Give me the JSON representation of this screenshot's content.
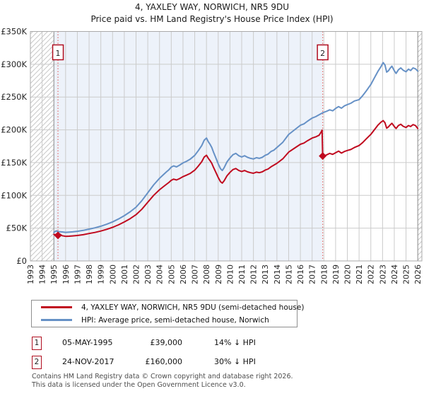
{
  "title": "4, YAXLEY WAY, NORWICH, NR5 9DU",
  "subtitle": "Price paid vs. HM Land Registry's House Price Index (HPI)",
  "colors": {
    "line_red": "#c00a1f",
    "line_blue": "#6691c6",
    "marker_red": "#b00d1f",
    "hpi_band_tint": "#edf2fa",
    "grid": "#cbcbcb",
    "grid_dark": "#8a8a8a",
    "dotted_sale_line": "#e06c6c",
    "hatch": "#c9c9c9",
    "plot_border": "#aaaaaa",
    "axis_text": "#262626"
  },
  "chart_data": {
    "type": "line",
    "title": "4, YAXLEY WAY, NORWICH, NR5 9DU",
    "subtitle": "Price paid vs. HM Land Registry's House Price Index (HPI)",
    "xlabel": "",
    "ylabel": "",
    "xlim": [
      1993,
      2026.35
    ],
    "ylim": [
      0,
      350
    ],
    "grid": true,
    "y_ticks": [
      0,
      50,
      100,
      150,
      200,
      250,
      300,
      350
    ],
    "y_tick_labels": [
      "£0",
      "£50K",
      "£100K",
      "£150K",
      "£200K",
      "£250K",
      "£300K",
      "£350K"
    ],
    "x_ticks": [
      1993,
      1994,
      1995,
      1996,
      1997,
      1998,
      1999,
      2000,
      2001,
      2002,
      2003,
      2004,
      2005,
      2006,
      2007,
      2008,
      2009,
      2010,
      2011,
      2012,
      2013,
      2014,
      2015,
      2016,
      2017,
      2018,
      2019,
      2020,
      2021,
      2022,
      2023,
      2024,
      2025,
      2026
    ],
    "dark_x_gridlines": [
      1995,
      2026
    ],
    "hpi_band_range": [
      1995,
      2017.9
    ],
    "no_data_hatch_ranges": [
      [
        1993,
        1995
      ],
      [
        2026,
        2026.35
      ]
    ],
    "units": "GBP thousands",
    "series": [
      {
        "name": "HPI: Average price, semi-detached house, Norwich",
        "color": "#6691c6",
        "points": [
          [
            1995.0,
            43.5
          ],
          [
            1995.2,
            45.8
          ],
          [
            1995.4,
            44.6
          ],
          [
            1995.7,
            44.2
          ],
          [
            1996.0,
            43.6
          ],
          [
            1996.3,
            43.9
          ],
          [
            1996.6,
            44.3
          ],
          [
            1997.0,
            45.2
          ],
          [
            1997.5,
            46.6
          ],
          [
            1998.0,
            48.5
          ],
          [
            1998.5,
            50.5
          ],
          [
            1999.0,
            53
          ],
          [
            1999.5,
            56
          ],
          [
            2000.0,
            59.5
          ],
          [
            2000.5,
            64
          ],
          [
            2001.0,
            69
          ],
          [
            2001.5,
            75
          ],
          [
            2002.0,
            82
          ],
          [
            2002.5,
            92
          ],
          [
            2003.0,
            104
          ],
          [
            2003.5,
            116
          ],
          [
            2004.0,
            126
          ],
          [
            2004.3,
            131
          ],
          [
            2004.6,
            136
          ],
          [
            2004.8,
            139
          ],
          [
            2005.0,
            143
          ],
          [
            2005.2,
            145
          ],
          [
            2005.45,
            143.5
          ],
          [
            2005.7,
            146
          ],
          [
            2006.0,
            149.5
          ],
          [
            2006.3,
            152
          ],
          [
            2006.6,
            155
          ],
          [
            2007.0,
            161
          ],
          [
            2007.3,
            168
          ],
          [
            2007.6,
            176
          ],
          [
            2007.8,
            184
          ],
          [
            2008.0,
            187.5
          ],
          [
            2008.15,
            182
          ],
          [
            2008.3,
            178
          ],
          [
            2008.45,
            173
          ],
          [
            2008.6,
            166
          ],
          [
            2008.8,
            157
          ],
          [
            2009.0,
            148
          ],
          [
            2009.2,
            140.5
          ],
          [
            2009.35,
            138
          ],
          [
            2009.5,
            142
          ],
          [
            2009.75,
            151
          ],
          [
            2010.0,
            157
          ],
          [
            2010.25,
            162
          ],
          [
            2010.5,
            164
          ],
          [
            2010.75,
            160.5
          ],
          [
            2011.0,
            158.5
          ],
          [
            2011.25,
            160.5
          ],
          [
            2011.5,
            158
          ],
          [
            2011.75,
            156.5
          ],
          [
            2012.0,
            155.5
          ],
          [
            2012.25,
            157.5
          ],
          [
            2012.5,
            156.5
          ],
          [
            2012.75,
            158
          ],
          [
            2013.0,
            161
          ],
          [
            2013.25,
            163
          ],
          [
            2013.5,
            167
          ],
          [
            2013.75,
            169
          ],
          [
            2014.0,
            173
          ],
          [
            2014.5,
            181
          ],
          [
            2015.0,
            193
          ],
          [
            2015.5,
            200
          ],
          [
            2016.0,
            207
          ],
          [
            2016.3,
            209
          ],
          [
            2016.6,
            213
          ],
          [
            2017.0,
            218
          ],
          [
            2017.3,
            220
          ],
          [
            2017.6,
            223
          ],
          [
            2017.9,
            226
          ],
          [
            2018.2,
            228
          ],
          [
            2018.5,
            230.5
          ],
          [
            2018.75,
            229
          ],
          [
            2019.0,
            232.5
          ],
          [
            2019.25,
            235.5
          ],
          [
            2019.5,
            233
          ],
          [
            2019.75,
            236.5
          ],
          [
            2020.0,
            238.5
          ],
          [
            2020.3,
            240.5
          ],
          [
            2020.6,
            244
          ],
          [
            2021.0,
            246
          ],
          [
            2021.3,
            252
          ],
          [
            2021.6,
            259
          ],
          [
            2022.0,
            269
          ],
          [
            2022.3,
            279
          ],
          [
            2022.6,
            289
          ],
          [
            2022.85,
            296
          ],
          [
            2023.05,
            302.5
          ],
          [
            2023.2,
            299
          ],
          [
            2023.35,
            288
          ],
          [
            2023.5,
            290
          ],
          [
            2023.65,
            294
          ],
          [
            2023.8,
            297
          ],
          [
            2024.0,
            290
          ],
          [
            2024.15,
            286
          ],
          [
            2024.35,
            291.5
          ],
          [
            2024.55,
            294.5
          ],
          [
            2024.75,
            291
          ],
          [
            2025.0,
            288.5
          ],
          [
            2025.2,
            292.5
          ],
          [
            2025.4,
            290.5
          ],
          [
            2025.6,
            294.5
          ],
          [
            2025.8,
            293
          ],
          [
            2026.0,
            289.5
          ]
        ]
      },
      {
        "name": "4, YAXLEY WAY, NORWICH, NR5 9DU (semi-detached house)",
        "color": "#c00a1f",
        "points": [
          [
            1995.0,
            40.5
          ],
          [
            1995.2,
            40
          ],
          [
            1995.35,
            39
          ],
          [
            1995.5,
            41
          ],
          [
            1995.7,
            38.5
          ],
          [
            1996.0,
            37.5
          ],
          [
            1996.3,
            37.8
          ],
          [
            1996.6,
            38.2
          ],
          [
            1997.0,
            38.8
          ],
          [
            1997.5,
            40
          ],
          [
            1998.0,
            41.8
          ],
          [
            1998.5,
            43.5
          ],
          [
            1999.0,
            45.6
          ],
          [
            1999.5,
            48.2
          ],
          [
            2000.0,
            51.2
          ],
          [
            2000.5,
            55
          ],
          [
            2001.0,
            59.4
          ],
          [
            2001.5,
            64.5
          ],
          [
            2002.0,
            70.5
          ],
          [
            2002.5,
            79
          ],
          [
            2003.0,
            89.5
          ],
          [
            2003.5,
            100
          ],
          [
            2004.0,
            108.5
          ],
          [
            2004.3,
            112.8
          ],
          [
            2004.6,
            117
          ],
          [
            2004.8,
            119.7
          ],
          [
            2005.0,
            123
          ],
          [
            2005.2,
            124.8
          ],
          [
            2005.45,
            123.5
          ],
          [
            2005.7,
            125.6
          ],
          [
            2006.0,
            128.6
          ],
          [
            2006.3,
            130.8
          ],
          [
            2006.6,
            133.3
          ],
          [
            2007.0,
            138.5
          ],
          [
            2007.3,
            144.5
          ],
          [
            2007.6,
            151.4
          ],
          [
            2007.8,
            158.3
          ],
          [
            2008.0,
            161.3
          ],
          [
            2008.15,
            156.6
          ],
          [
            2008.3,
            153.1
          ],
          [
            2008.45,
            148.8
          ],
          [
            2008.6,
            142.8
          ],
          [
            2008.8,
            135
          ],
          [
            2009.0,
            127.3
          ],
          [
            2009.2,
            120.8
          ],
          [
            2009.35,
            118.7
          ],
          [
            2009.5,
            122.1
          ],
          [
            2009.75,
            129.9
          ],
          [
            2010.0,
            135
          ],
          [
            2010.25,
            139.3
          ],
          [
            2010.5,
            141
          ],
          [
            2010.75,
            138
          ],
          [
            2011.0,
            136.3
          ],
          [
            2011.25,
            138
          ],
          [
            2011.5,
            135.9
          ],
          [
            2011.75,
            134.6
          ],
          [
            2012.0,
            133.7
          ],
          [
            2012.25,
            135.5
          ],
          [
            2012.5,
            134.6
          ],
          [
            2012.75,
            135.9
          ],
          [
            2013.0,
            138.5
          ],
          [
            2013.25,
            140.2
          ],
          [
            2013.5,
            143.6
          ],
          [
            2014.0,
            148.8
          ],
          [
            2014.5,
            155.7
          ],
          [
            2015.0,
            166
          ],
          [
            2015.5,
            172
          ],
          [
            2016.0,
            178
          ],
          [
            2016.3,
            179.8
          ],
          [
            2016.6,
            183.2
          ],
          [
            2017.0,
            187.5
          ],
          [
            2017.3,
            189.2
          ],
          [
            2017.6,
            191.8
          ],
          [
            2017.75,
            196
          ],
          [
            2017.85,
            199.5
          ],
          [
            2017.9,
            160
          ],
          [
            2018.2,
            161.5
          ],
          [
            2018.5,
            164
          ],
          [
            2018.75,
            162.5
          ],
          [
            2019.0,
            165
          ],
          [
            2019.25,
            167.5
          ],
          [
            2019.5,
            164.5
          ],
          [
            2019.75,
            167
          ],
          [
            2020.0,
            168.5
          ],
          [
            2020.3,
            170
          ],
          [
            2020.6,
            173
          ],
          [
            2021.0,
            176
          ],
          [
            2021.3,
            180.5
          ],
          [
            2021.6,
            186
          ],
          [
            2022.0,
            193
          ],
          [
            2022.3,
            200
          ],
          [
            2022.6,
            207
          ],
          [
            2022.85,
            211.5
          ],
          [
            2023.05,
            214
          ],
          [
            2023.2,
            211
          ],
          [
            2023.35,
            202.5
          ],
          [
            2023.5,
            204.5
          ],
          [
            2023.65,
            207.5
          ],
          [
            2023.8,
            210
          ],
          [
            2024.0,
            205
          ],
          [
            2024.15,
            202
          ],
          [
            2024.35,
            206.5
          ],
          [
            2024.55,
            208.5
          ],
          [
            2024.75,
            205.5
          ],
          [
            2025.0,
            203.5
          ],
          [
            2025.2,
            206.5
          ],
          [
            2025.4,
            205
          ],
          [
            2025.6,
            208
          ],
          [
            2025.8,
            206.5
          ],
          [
            2026.0,
            202
          ]
        ]
      }
    ],
    "sale_markers": [
      {
        "label": "1",
        "year": 1995.35,
        "price_k": 39
      },
      {
        "label": "2",
        "year": 2017.9,
        "price_k": 160
      }
    ],
    "legend_position": "bottom"
  },
  "legend": {
    "items": [
      {
        "label": "4, YAXLEY WAY, NORWICH, NR5 9DU (semi-detached house)",
        "color": "#c00a1f"
      },
      {
        "label": "HPI: Average price, semi-detached house, Norwich",
        "color": "#6691c6"
      }
    ]
  },
  "annotations": [
    {
      "num": "1",
      "date": "05-MAY-1995",
      "price": "£39,000",
      "hpi_diff": "14% ↓ HPI"
    },
    {
      "num": "2",
      "date": "24-NOV-2017",
      "price": "£160,000",
      "hpi_diff": "30% ↓ HPI"
    }
  ],
  "footer": {
    "line1": "Contains HM Land Registry data © Crown copyright and database right 2026.",
    "line2": "This data is licensed under the Open Government Licence v3.0."
  }
}
